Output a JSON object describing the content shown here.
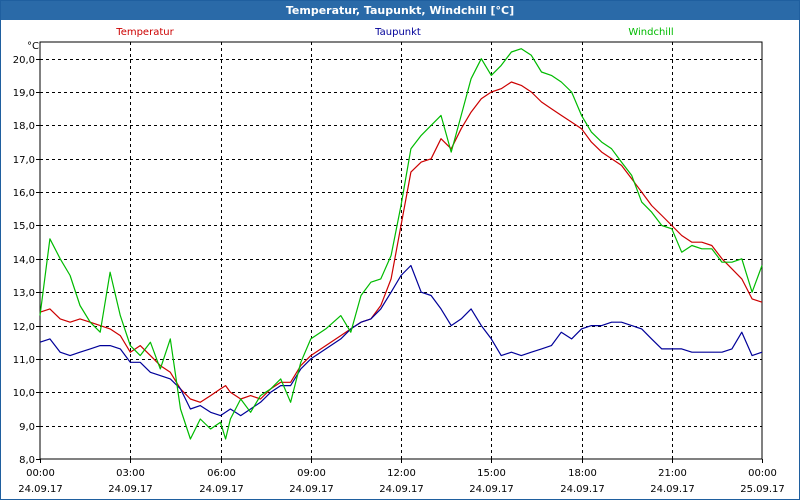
{
  "window": {
    "title": "Temperatur, Taupunkt, Windchill [°C]",
    "background": "#ffffff",
    "titlebar_color": "#2a6aa8"
  },
  "chart_data": {
    "type": "line",
    "title": "Temperatur, Taupunkt, Windchill [°C]",
    "ylabel": "°C",
    "xlabel": "",
    "ylim": [
      8.0,
      20.5
    ],
    "xlim": [
      0,
      24
    ],
    "grid": true,
    "legend_placement": "top",
    "y_ticks": [
      {
        "value": 8.0,
        "label": "8,0"
      },
      {
        "value": 9.0,
        "label": "9,0"
      },
      {
        "value": 10.0,
        "label": "10,0"
      },
      {
        "value": 11.0,
        "label": "11,0"
      },
      {
        "value": 12.0,
        "label": "12,0"
      },
      {
        "value": 13.0,
        "label": "13,0"
      },
      {
        "value": 14.0,
        "label": "14,0"
      },
      {
        "value": 15.0,
        "label": "15,0"
      },
      {
        "value": 16.0,
        "label": "16,0"
      },
      {
        "value": 17.0,
        "label": "17,0"
      },
      {
        "value": 18.0,
        "label": "18,0"
      },
      {
        "value": 19.0,
        "label": "19,0"
      },
      {
        "value": 20.0,
        "label": "20,0"
      }
    ],
    "x_ticks": [
      {
        "value": 0,
        "time": "00:00",
        "date": "24.09.17"
      },
      {
        "value": 3,
        "time": "03:00",
        "date": "24.09.17"
      },
      {
        "value": 6,
        "time": "06:00",
        "date": "24.09.17"
      },
      {
        "value": 9,
        "time": "09:00",
        "date": "24.09.17"
      },
      {
        "value": 12,
        "time": "12:00",
        "date": "24.09.17"
      },
      {
        "value": 15,
        "time": "15:00",
        "date": "24.09.17"
      },
      {
        "value": 18,
        "time": "18:00",
        "date": "24.09.17"
      },
      {
        "value": 21,
        "time": "21:00",
        "date": "24.09.17"
      },
      {
        "value": 24,
        "time": "00:00",
        "date": "25.09.17"
      }
    ],
    "series": [
      {
        "name": "Temperatur",
        "color": "#cc0000",
        "points": [
          [
            0.0,
            12.4
          ],
          [
            0.33,
            12.5
          ],
          [
            0.67,
            12.2
          ],
          [
            1.0,
            12.1
          ],
          [
            1.33,
            12.2
          ],
          [
            1.67,
            12.1
          ],
          [
            2.0,
            12.0
          ],
          [
            2.33,
            11.9
          ],
          [
            2.67,
            11.7
          ],
          [
            3.0,
            11.2
          ],
          [
            3.33,
            11.4
          ],
          [
            3.67,
            11.1
          ],
          [
            4.0,
            10.8
          ],
          [
            4.33,
            10.6
          ],
          [
            4.67,
            10.1
          ],
          [
            5.0,
            9.8
          ],
          [
            5.33,
            9.7
          ],
          [
            5.67,
            9.9
          ],
          [
            6.0,
            10.1
          ],
          [
            6.17,
            10.2
          ],
          [
            6.33,
            10.0
          ],
          [
            6.67,
            9.8
          ],
          [
            7.0,
            9.9
          ],
          [
            7.33,
            9.8
          ],
          [
            7.67,
            10.1
          ],
          [
            8.0,
            10.3
          ],
          [
            8.33,
            10.3
          ],
          [
            8.67,
            10.8
          ],
          [
            9.0,
            11.1
          ],
          [
            9.5,
            11.4
          ],
          [
            10.0,
            11.7
          ],
          [
            10.33,
            11.9
          ],
          [
            10.67,
            12.1
          ],
          [
            11.0,
            12.2
          ],
          [
            11.33,
            12.6
          ],
          [
            11.67,
            13.4
          ],
          [
            12.0,
            15.0
          ],
          [
            12.33,
            16.6
          ],
          [
            12.67,
            16.9
          ],
          [
            13.0,
            17.0
          ],
          [
            13.33,
            17.6
          ],
          [
            13.67,
            17.3
          ],
          [
            14.0,
            17.9
          ],
          [
            14.33,
            18.4
          ],
          [
            14.67,
            18.8
          ],
          [
            15.0,
            19.0
          ],
          [
            15.33,
            19.1
          ],
          [
            15.67,
            19.3
          ],
          [
            16.0,
            19.2
          ],
          [
            16.33,
            19.0
          ],
          [
            16.67,
            18.7
          ],
          [
            17.0,
            18.5
          ],
          [
            17.33,
            18.3
          ],
          [
            17.67,
            18.1
          ],
          [
            18.0,
            17.9
          ],
          [
            18.33,
            17.5
          ],
          [
            18.67,
            17.2
          ],
          [
            19.0,
            17.0
          ],
          [
            19.33,
            16.8
          ],
          [
            19.67,
            16.4
          ],
          [
            20.0,
            16.0
          ],
          [
            20.33,
            15.6
          ],
          [
            20.67,
            15.3
          ],
          [
            21.0,
            15.0
          ],
          [
            21.33,
            14.7
          ],
          [
            21.67,
            14.5
          ],
          [
            22.0,
            14.5
          ],
          [
            22.33,
            14.4
          ],
          [
            22.67,
            14.0
          ],
          [
            23.0,
            13.7
          ],
          [
            23.33,
            13.4
          ],
          [
            23.67,
            12.8
          ],
          [
            24.0,
            12.7
          ]
        ]
      },
      {
        "name": "Taupunkt",
        "color": "#000099",
        "points": [
          [
            0.0,
            11.5
          ],
          [
            0.33,
            11.6
          ],
          [
            0.67,
            11.2
          ],
          [
            1.0,
            11.1
          ],
          [
            1.33,
            11.2
          ],
          [
            1.67,
            11.3
          ],
          [
            2.0,
            11.4
          ],
          [
            2.33,
            11.4
          ],
          [
            2.67,
            11.3
          ],
          [
            3.0,
            10.9
          ],
          [
            3.33,
            10.9
          ],
          [
            3.67,
            10.6
          ],
          [
            4.0,
            10.5
          ],
          [
            4.33,
            10.4
          ],
          [
            4.67,
            10.1
          ],
          [
            5.0,
            9.5
          ],
          [
            5.33,
            9.6
          ],
          [
            5.67,
            9.4
          ],
          [
            6.0,
            9.3
          ],
          [
            6.33,
            9.5
          ],
          [
            6.67,
            9.3
          ],
          [
            7.0,
            9.5
          ],
          [
            7.33,
            9.7
          ],
          [
            7.67,
            10.0
          ],
          [
            8.0,
            10.2
          ],
          [
            8.33,
            10.2
          ],
          [
            8.67,
            10.7
          ],
          [
            9.0,
            11.0
          ],
          [
            9.5,
            11.3
          ],
          [
            10.0,
            11.6
          ],
          [
            10.33,
            11.9
          ],
          [
            10.67,
            12.1
          ],
          [
            11.0,
            12.2
          ],
          [
            11.33,
            12.5
          ],
          [
            11.67,
            13.0
          ],
          [
            12.0,
            13.5
          ],
          [
            12.33,
            13.8
          ],
          [
            12.67,
            13.0
          ],
          [
            13.0,
            12.9
          ],
          [
            13.33,
            12.5
          ],
          [
            13.67,
            12.0
          ],
          [
            14.0,
            12.2
          ],
          [
            14.33,
            12.5
          ],
          [
            14.67,
            12.0
          ],
          [
            15.0,
            11.6
          ],
          [
            15.33,
            11.1
          ],
          [
            15.67,
            11.2
          ],
          [
            16.0,
            11.1
          ],
          [
            16.33,
            11.2
          ],
          [
            16.67,
            11.3
          ],
          [
            17.0,
            11.4
          ],
          [
            17.33,
            11.8
          ],
          [
            17.67,
            11.6
          ],
          [
            18.0,
            11.9
          ],
          [
            18.33,
            12.0
          ],
          [
            18.67,
            12.0
          ],
          [
            19.0,
            12.1
          ],
          [
            19.33,
            12.1
          ],
          [
            19.67,
            12.0
          ],
          [
            20.0,
            11.9
          ],
          [
            20.33,
            11.6
          ],
          [
            20.67,
            11.3
          ],
          [
            21.0,
            11.3
          ],
          [
            21.33,
            11.3
          ],
          [
            21.67,
            11.2
          ],
          [
            22.0,
            11.2
          ],
          [
            22.33,
            11.2
          ],
          [
            22.67,
            11.2
          ],
          [
            23.0,
            11.3
          ],
          [
            23.33,
            11.8
          ],
          [
            23.67,
            11.1
          ],
          [
            24.0,
            11.2
          ]
        ]
      },
      {
        "name": "Windchill",
        "color": "#00bb00",
        "points": [
          [
            0.0,
            12.3
          ],
          [
            0.33,
            14.6
          ],
          [
            0.67,
            14.0
          ],
          [
            1.0,
            13.5
          ],
          [
            1.33,
            12.6
          ],
          [
            1.67,
            12.1
          ],
          [
            2.0,
            11.8
          ],
          [
            2.33,
            13.6
          ],
          [
            2.67,
            12.3
          ],
          [
            3.0,
            11.4
          ],
          [
            3.33,
            11.1
          ],
          [
            3.67,
            11.5
          ],
          [
            4.0,
            10.7
          ],
          [
            4.33,
            11.6
          ],
          [
            4.67,
            9.5
          ],
          [
            5.0,
            8.6
          ],
          [
            5.33,
            9.2
          ],
          [
            5.67,
            8.9
          ],
          [
            6.0,
            9.1
          ],
          [
            6.17,
            8.6
          ],
          [
            6.33,
            9.2
          ],
          [
            6.67,
            9.8
          ],
          [
            7.0,
            9.4
          ],
          [
            7.33,
            9.9
          ],
          [
            7.67,
            10.1
          ],
          [
            8.0,
            10.4
          ],
          [
            8.33,
            9.7
          ],
          [
            8.67,
            10.9
          ],
          [
            9.0,
            11.6
          ],
          [
            9.5,
            11.9
          ],
          [
            10.0,
            12.3
          ],
          [
            10.33,
            11.8
          ],
          [
            10.67,
            12.9
          ],
          [
            11.0,
            13.3
          ],
          [
            11.33,
            13.4
          ],
          [
            11.67,
            14.1
          ],
          [
            12.0,
            15.6
          ],
          [
            12.33,
            17.3
          ],
          [
            12.67,
            17.7
          ],
          [
            13.0,
            18.0
          ],
          [
            13.33,
            18.3
          ],
          [
            13.67,
            17.2
          ],
          [
            14.0,
            18.3
          ],
          [
            14.33,
            19.4
          ],
          [
            14.67,
            20.0
          ],
          [
            15.0,
            19.5
          ],
          [
            15.33,
            19.8
          ],
          [
            15.67,
            20.2
          ],
          [
            16.0,
            20.3
          ],
          [
            16.33,
            20.1
          ],
          [
            16.67,
            19.6
          ],
          [
            17.0,
            19.5
          ],
          [
            17.33,
            19.3
          ],
          [
            17.67,
            19.0
          ],
          [
            18.0,
            18.3
          ],
          [
            18.33,
            17.8
          ],
          [
            18.67,
            17.5
          ],
          [
            19.0,
            17.3
          ],
          [
            19.33,
            16.9
          ],
          [
            19.67,
            16.5
          ],
          [
            20.0,
            15.7
          ],
          [
            20.33,
            15.4
          ],
          [
            20.67,
            15.0
          ],
          [
            21.0,
            14.9
          ],
          [
            21.33,
            14.2
          ],
          [
            21.67,
            14.4
          ],
          [
            22.0,
            14.3
          ],
          [
            22.33,
            14.3
          ],
          [
            22.67,
            13.9
          ],
          [
            23.0,
            13.9
          ],
          [
            23.33,
            14.0
          ],
          [
            23.67,
            13.0
          ],
          [
            24.0,
            13.8
          ]
        ]
      }
    ]
  }
}
